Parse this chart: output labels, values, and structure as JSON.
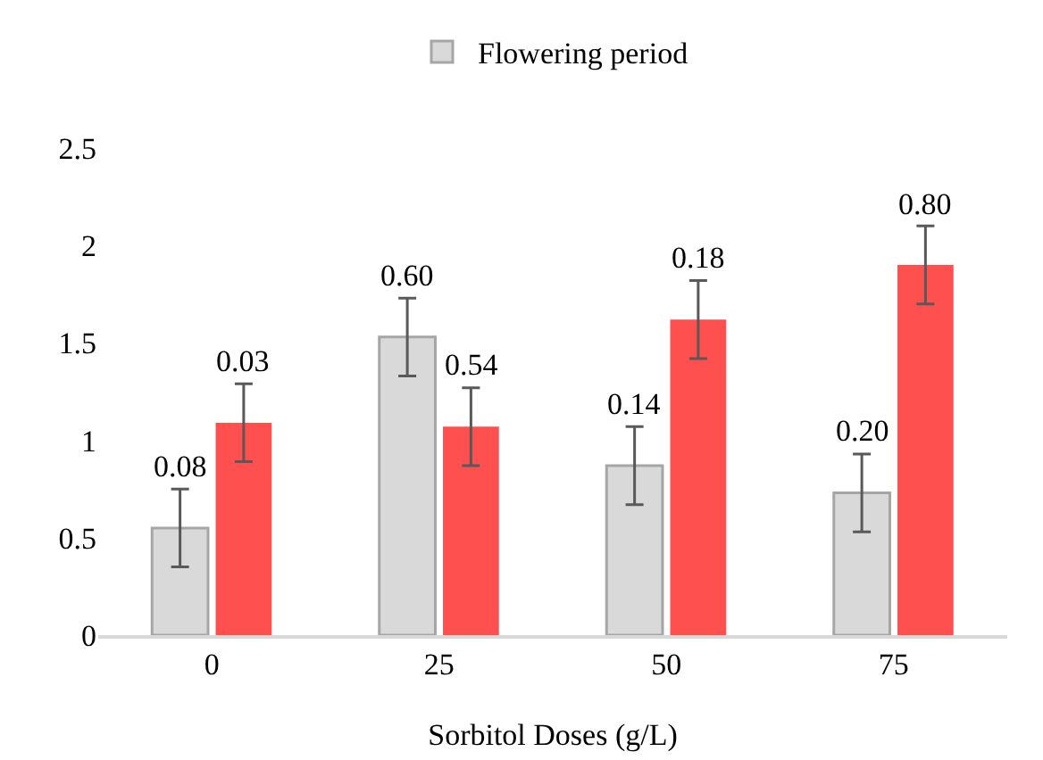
{
  "chart_data": {
    "type": "bar",
    "xlabel": "Sorbitol Doses (g/L)",
    "categories": [
      "0",
      "25",
      "50",
      "75"
    ],
    "series": [
      {
        "name": "Flowering period",
        "color": "#d9d9d9",
        "values": [
          0.55,
          1.53,
          0.87,
          0.73
        ],
        "errors": [
          0.2,
          0.2,
          0.2,
          0.2
        ]
      },
      {
        "color": "#ff5050",
        "values": [
          1.09,
          1.07,
          1.62,
          1.9
        ],
        "errors": [
          0.2,
          0.2,
          0.2,
          0.2
        ]
      }
    ],
    "annotations": [
      {
        "text": "0.08",
        "x": "0",
        "y": 0.55
      },
      {
        "text": "0.03",
        "x": "0",
        "y": 1.09
      },
      {
        "text": "0.60",
        "x": "25",
        "y": 1.53
      },
      {
        "text": "0.54",
        "x": "25",
        "y": 1.07
      },
      {
        "text": "0.14",
        "x": "50",
        "y": 0.87
      },
      {
        "text": "0.18",
        "x": "50",
        "y": 1.62
      },
      {
        "text": "0.20",
        "x": "75",
        "y": 0.73
      },
      {
        "text": "0.80",
        "x": "75",
        "y": 1.9
      }
    ],
    "ylim": [
      0,
      2.5
    ],
    "yticks": [
      0,
      0.5,
      1,
      1.5,
      2,
      2.5
    ],
    "grid": false,
    "legend": "top"
  }
}
